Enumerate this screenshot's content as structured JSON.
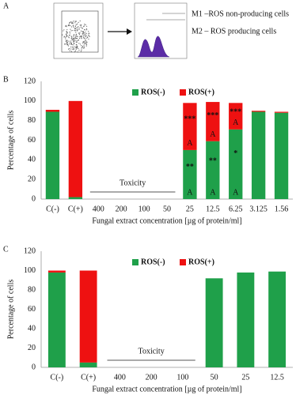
{
  "panel_a": {
    "label": "A",
    "notes": [
      "M1 –ROS non-producing cells",
      "M2 – ROS producing cells"
    ]
  },
  "chart_data": [
    {
      "type": "bar",
      "stacked": true,
      "panel": "B",
      "legend": "top",
      "y_label": "Percentage of cells",
      "x_label": "Fungal extract concentration [µg of protein/ml]",
      "annotation": "Toxicity",
      "categories": [
        "C(-)",
        "C(+)",
        "400",
        "200",
        "100",
        "50",
        "25",
        "12.5",
        "6.25",
        "3.125",
        "1.56"
      ],
      "ylim": [
        0,
        120
      ],
      "yticks": [
        0,
        20,
        40,
        60,
        80,
        100,
        120
      ],
      "series": [
        {
          "name": "ROS(-)",
          "color": "#1fa04a",
          "values": [
            89,
            2,
            null,
            null,
            null,
            null,
            50,
            59,
            71,
            89,
            88
          ],
          "stars": [
            null,
            null,
            null,
            null,
            null,
            null,
            "**",
            "**",
            "*",
            null,
            null
          ],
          "letters": [
            null,
            null,
            null,
            null,
            null,
            null,
            "A",
            "A",
            "A",
            null,
            null
          ]
        },
        {
          "name": "ROS(+)",
          "color": "#ee1111",
          "values": [
            2,
            98,
            null,
            null,
            null,
            null,
            48,
            40,
            27,
            1,
            1
          ],
          "stars": [
            null,
            null,
            null,
            null,
            null,
            null,
            "***",
            "***",
            "***",
            null,
            null
          ],
          "letters": [
            null,
            null,
            null,
            null,
            null,
            null,
            "A",
            "A",
            "A",
            null,
            null
          ]
        }
      ]
    },
    {
      "type": "bar",
      "stacked": true,
      "panel": "C",
      "legend": "top",
      "y_label": "Percentage of cells",
      "x_label": "Fungal extract concentration [µg of protein/ml]",
      "annotation": "Toxicity",
      "categories": [
        "C(-)",
        "C(+)",
        "400",
        "200",
        "100",
        "50",
        "25",
        "12.5"
      ],
      "ylim": [
        0,
        120
      ],
      "yticks": [
        0,
        20,
        40,
        60,
        80,
        100,
        120
      ],
      "series": [
        {
          "name": "ROS(-)",
          "color": "#1fa04a",
          "values": [
            98,
            5,
            null,
            null,
            null,
            92,
            98,
            99
          ]
        },
        {
          "name": "ROS(+)",
          "color": "#ee1111",
          "values": [
            2,
            95,
            null,
            null,
            null,
            null,
            null,
            null
          ]
        }
      ]
    }
  ]
}
